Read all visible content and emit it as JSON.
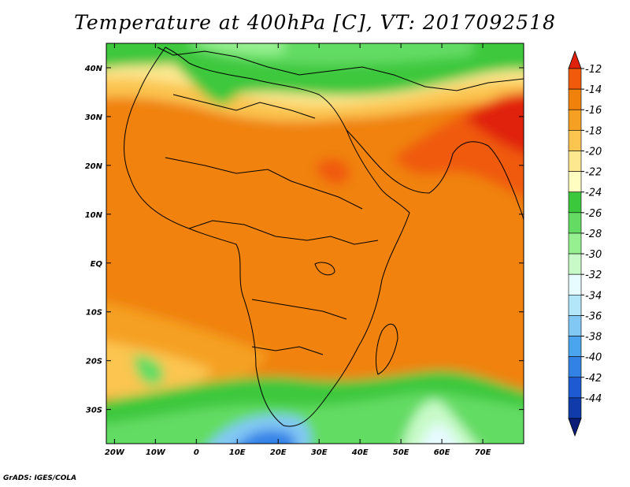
{
  "title": "Temperature at 400hPa [C], VT: 2017092518",
  "footer": "GrADS: IGES/COLA",
  "lat_ticks": [
    "40N",
    "30N",
    "20N",
    "10N",
    "EQ",
    "10S",
    "20S",
    "30S"
  ],
  "lat_values": [
    40,
    30,
    20,
    10,
    0,
    -10,
    -20,
    -30
  ],
  "lon_ticks": [
    "20W",
    "10W",
    "0",
    "10E",
    "20E",
    "30E",
    "40E",
    "50E",
    "60E",
    "70E"
  ],
  "lon_values": [
    -20,
    -10,
    0,
    10,
    20,
    30,
    40,
    50,
    60,
    70
  ],
  "map_extent": {
    "lon_min": -22,
    "lon_max": 80,
    "lat_min": -37,
    "lat_max": 45
  },
  "colorbar": {
    "levels": [
      "-12",
      "-14",
      "-16",
      "-18",
      "-20",
      "-22",
      "-24",
      "-26",
      "-28",
      "-30",
      "-32",
      "-34",
      "-36",
      "-38",
      "-40",
      "-42",
      "-44"
    ],
    "colors": [
      "#e0220a",
      "#f05a0a",
      "#f0820c",
      "#f5a023",
      "#fbc550",
      "#fde890",
      "#fffec0",
      "#3cc83c",
      "#64dc64",
      "#96f090",
      "#c8fac8",
      "#e6fcff",
      "#b4e6fa",
      "#82c8f5",
      "#4ba5ee",
      "#3282e6",
      "#1e5ad2",
      "#0f3caa",
      "#0a1e78"
    ]
  }
}
